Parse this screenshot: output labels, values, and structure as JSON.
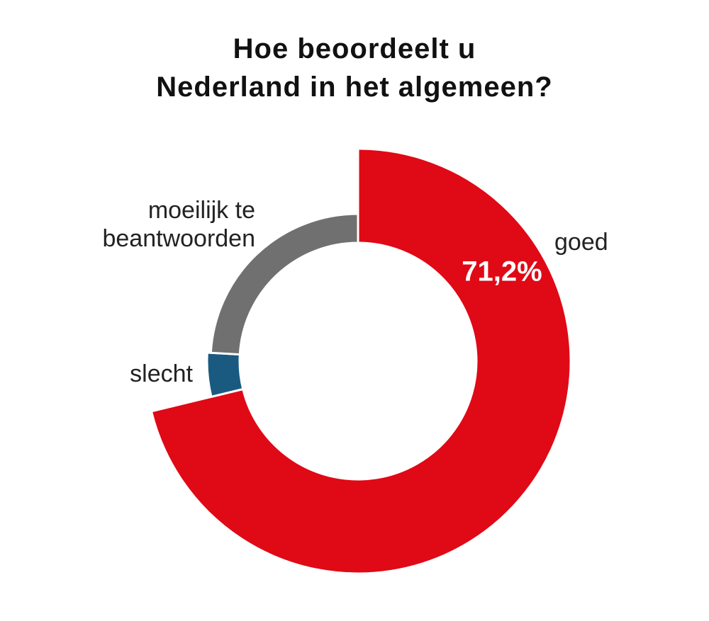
{
  "chart_data": {
    "type": "donut",
    "title": "Hoe beoordeelt u\nNederland in het algemeen?",
    "categories": [
      "goed",
      "slecht",
      "moeilijk te\nbeantwoorden"
    ],
    "values": [
      71.2,
      4.7,
      24.1
    ],
    "value_labels": [
      "71,2%",
      null,
      null
    ],
    "colors": [
      "#e00916",
      "#1a5a80",
      "#707070"
    ]
  }
}
